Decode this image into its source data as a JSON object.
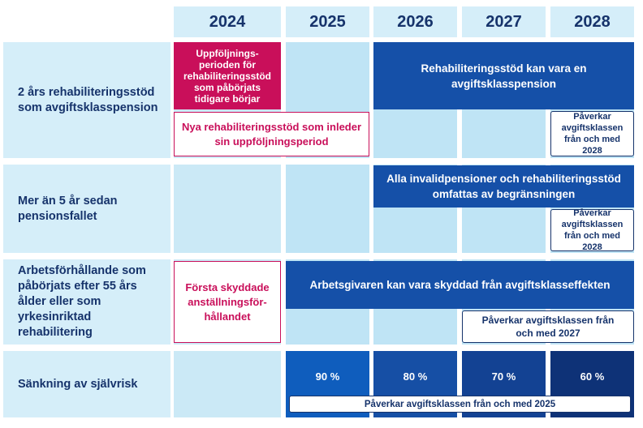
{
  "header": {
    "years": [
      "2024",
      "2025",
      "2026",
      "2027",
      "2028"
    ]
  },
  "rows": [
    {
      "label": "2 års rehabiliteringsstöd som avgiftsklasspension",
      "boxes": [
        "Uppföljnings-perioden för rehabiliteringsstöd som påbörjats tidigare börjar",
        "Nya rehabiliteringsstöd som inleder sin uppföljningsperiod",
        "Rehabiliteringsstöd kan vara en avgiftsklasspension",
        "Påverkar avgiftsklassen från och med 2028"
      ]
    },
    {
      "label": "Mer än 5 år sedan pensionsfallet",
      "boxes": [
        "Alla invalidpensioner och rehabiliteringsstöd omfattas av begränsningen",
        "Påverkar avgiftsklassen från och med 2028"
      ]
    },
    {
      "label": "Arbetsförhållande som påbörjats efter 55 års ålder eller som yrkesinriktad rehabilitering",
      "boxes": [
        "Första skyddade anställningsför-hållandet",
        "Arbetsgivaren kan vara skyddad från avgiftsklasseffekten",
        "Påverkar avgiftsklassen från och med 2027"
      ]
    },
    {
      "label": "Sänkning av självrisk",
      "boxes": [
        "90 %",
        "80 %",
        "70 %",
        "60 %",
        "Påverkar avgiftsklassen från och med 2025"
      ]
    }
  ]
}
